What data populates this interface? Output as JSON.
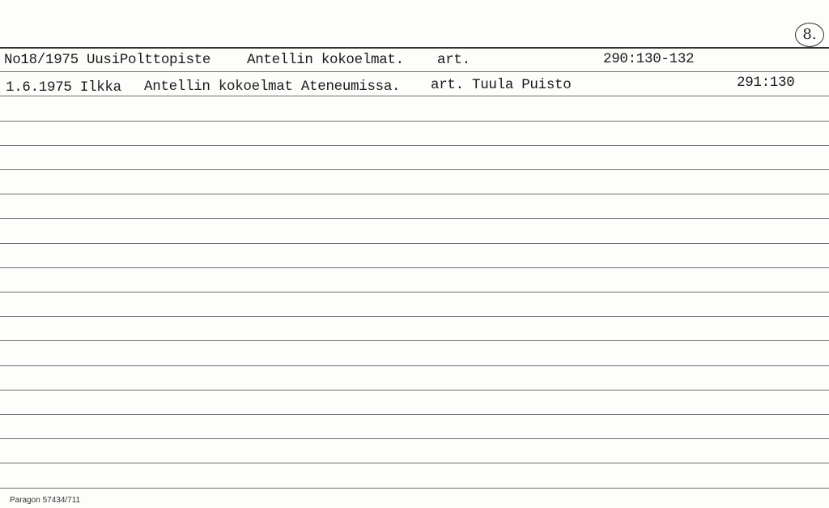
{
  "card_number": "8.",
  "entries": [
    {
      "source": "No18/1975 UusiPolttopiste",
      "title": "Antellin kokoelmat.",
      "type": "art.",
      "ref": "290:130-132"
    },
    {
      "source": "1.6.1975 Ilkka",
      "title": "Antellin kokoelmat Ateneumissa.",
      "type": "art. Tuula Puisto",
      "ref": "291:130"
    }
  ],
  "footer": "Paragon 57434/711"
}
